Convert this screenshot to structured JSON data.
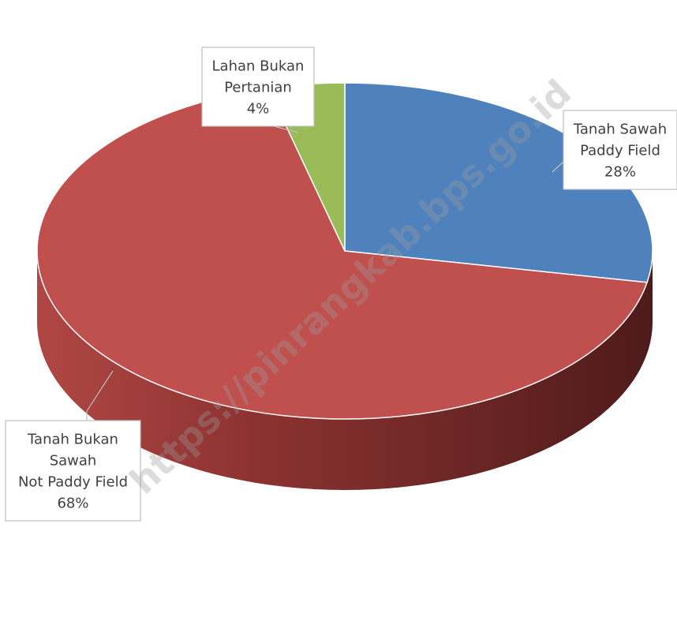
{
  "chart_data": {
    "type": "pie",
    "title": "",
    "slices": [
      {
        "label_lines": [
          "Tanah Sawah",
          "Paddy Field"
        ],
        "percent_label": "28%",
        "value": 28,
        "color": "#4F81BD"
      },
      {
        "label_lines": [
          "Tanah Bukan",
          "Sawah",
          "Not Paddy Field"
        ],
        "percent_label": "68%",
        "value": 68,
        "color": "#C0504D"
      },
      {
        "label_lines": [
          "Lahan Bukan",
          "Pertanian"
        ],
        "percent_label": "4%",
        "value": 4,
        "color": "#9BBB59"
      }
    ],
    "style": "3d"
  },
  "watermark": {
    "text": "https://pinrangkab.bps.go.id"
  }
}
